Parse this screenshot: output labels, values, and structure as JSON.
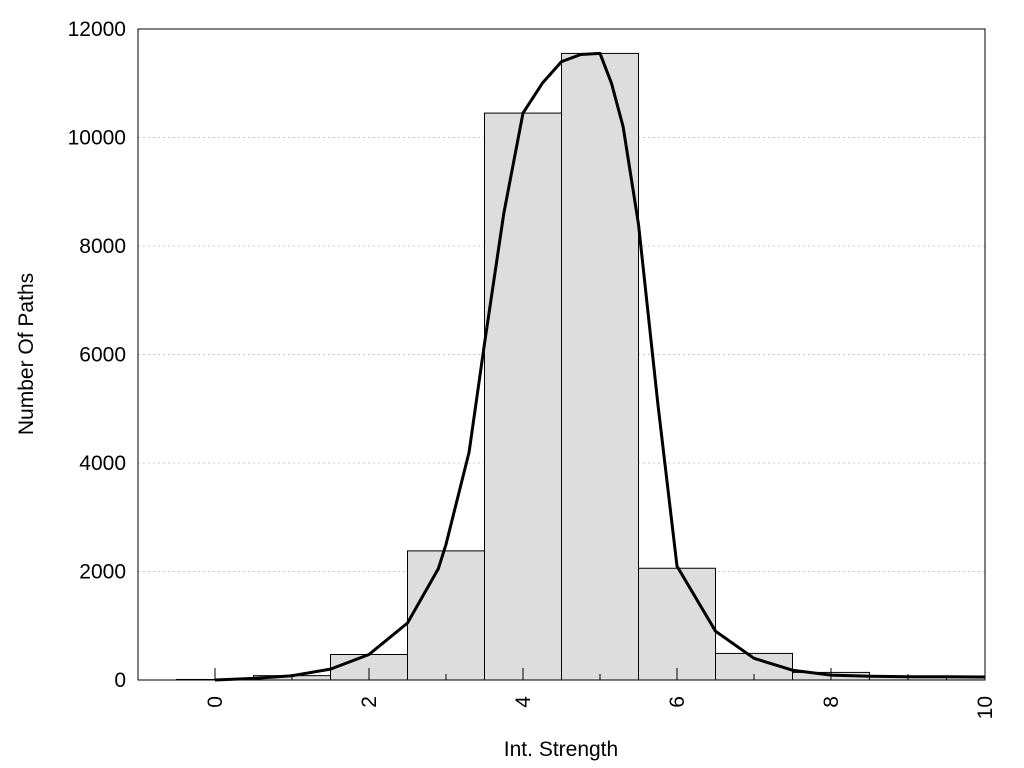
{
  "chart_data": {
    "type": "bar",
    "title": "",
    "xlabel": "Int. Strength",
    "ylabel": "Number Of Paths",
    "xlim": [
      -1,
      10
    ],
    "ylim": [
      0,
      12000
    ],
    "x_ticks": [
      0,
      2,
      4,
      6,
      8,
      10
    ],
    "y_ticks": [
      0,
      2000,
      4000,
      6000,
      8000,
      10000,
      12000
    ],
    "grid": "horizontal dotted",
    "legend": "none",
    "bar_width": 1,
    "bars": [
      {
        "x": 0,
        "value": 10
      },
      {
        "x": 1,
        "value": 80
      },
      {
        "x": 2,
        "value": 470
      },
      {
        "x": 3,
        "value": 2380
      },
      {
        "x": 4,
        "value": 10450
      },
      {
        "x": 5,
        "value": 11550
      },
      {
        "x": 6,
        "value": 2060
      },
      {
        "x": 7,
        "value": 490
      },
      {
        "x": 8,
        "value": 140
      },
      {
        "x": 9,
        "value": 60
      },
      {
        "x": 10,
        "value": 50
      }
    ],
    "curve": {
      "x": [
        0,
        0.5,
        1,
        1.5,
        2,
        2.5,
        2.9,
        3,
        3.3,
        3.5,
        3.75,
        4,
        4.25,
        4.5,
        4.75,
        5,
        5.15,
        5.3,
        5.5,
        5.75,
        6,
        6.5,
        7,
        7.5,
        8,
        8.5,
        9,
        9.5,
        10
      ],
      "y": [
        0,
        30,
        80,
        200,
        470,
        1050,
        2050,
        2500,
        4200,
        6200,
        8600,
        10450,
        11000,
        11400,
        11530,
        11550,
        11000,
        10200,
        8400,
        5100,
        2100,
        900,
        400,
        180,
        90,
        70,
        60,
        60,
        55
      ]
    },
    "colors": {
      "bar_fill": "#dddddd",
      "bar_stroke": "#000000",
      "curve": "#000000",
      "grid": "#c8c8c8"
    }
  }
}
